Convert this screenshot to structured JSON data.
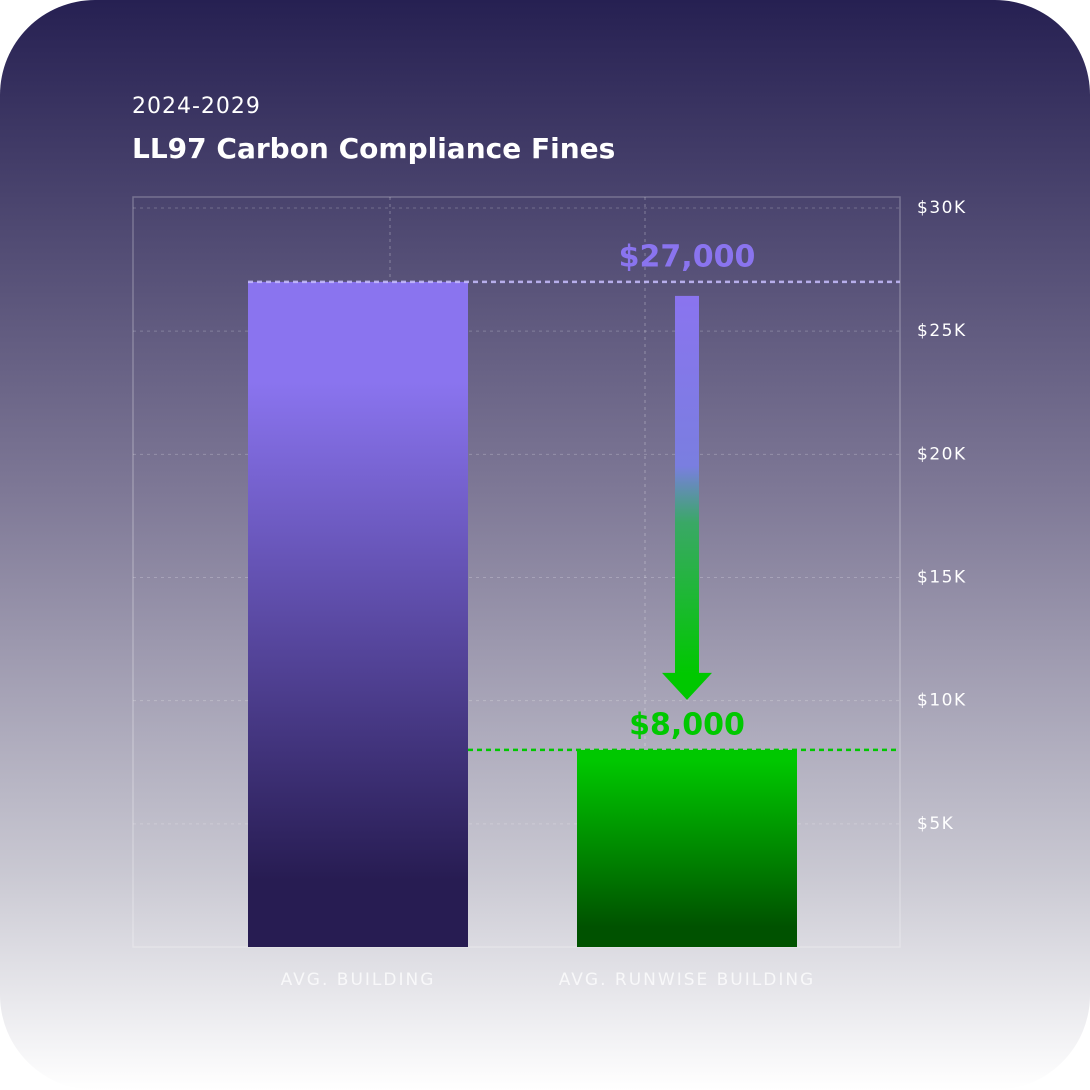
{
  "chart_data": {
    "type": "bar",
    "subtitle": "2024-2029",
    "title": "LL97 Carbon Compliance Fines",
    "categories": [
      "AVG. BUILDING",
      "AVG. RUNWISE BUILDING"
    ],
    "values": [
      27000,
      8000
    ],
    "value_labels": [
      "$27,000",
      "$8,000"
    ],
    "colors": [
      "#8a74ef",
      "#00c800"
    ],
    "ylim": [
      0,
      30000
    ],
    "yticks": [
      {
        "value": 5000,
        "label": "$5K"
      },
      {
        "value": 10000,
        "label": "$10K"
      },
      {
        "value": 15000,
        "label": "$15K"
      },
      {
        "value": 20000,
        "label": "$20K"
      },
      {
        "value": 25000,
        "label": "$25K"
      },
      {
        "value": 30000,
        "label": "$30K"
      }
    ],
    "grid": true
  }
}
